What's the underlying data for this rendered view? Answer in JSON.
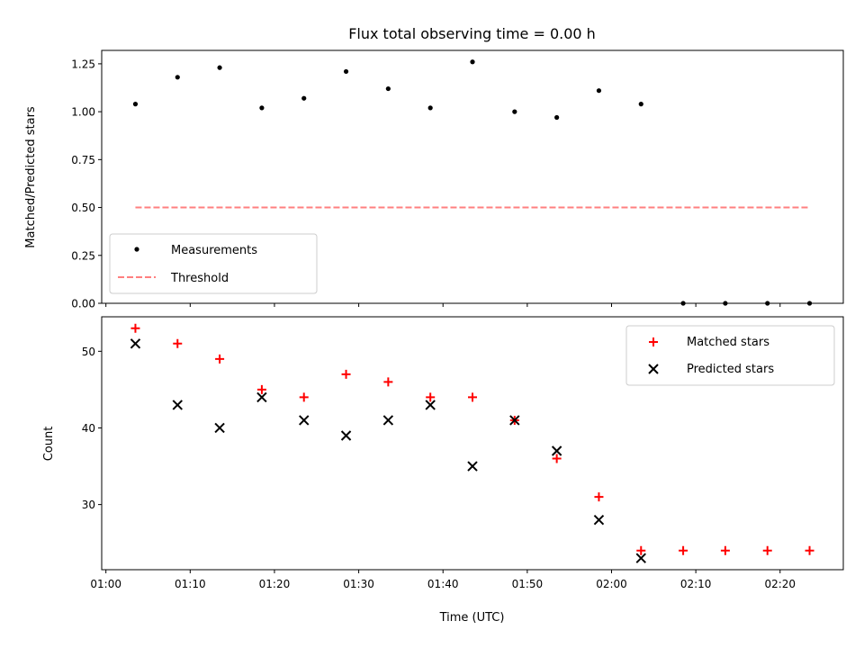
{
  "chart_data": [
    {
      "type": "scatter",
      "title": "Flux total observing time = 0.00 h",
      "xlabel": "",
      "ylabel": "Matched/Predicted stars",
      "ylim": [
        0,
        1.32
      ],
      "yticks": [
        "0.00",
        "0.25",
        "0.50",
        "0.75",
        "1.00",
        "1.25"
      ],
      "xlim": [
        "00:59:30",
        "02:27:30"
      ],
      "legend_position": "lower-left",
      "series": [
        {
          "name": "Measurements",
          "marker": "dot",
          "color": "#000000",
          "x": [
            "01:03:30",
            "01:08:30",
            "01:13:30",
            "01:18:30",
            "01:23:30",
            "01:28:30",
            "01:33:30",
            "01:38:30",
            "01:43:30",
            "01:48:30",
            "01:53:30",
            "01:58:30",
            "02:03:30",
            "02:08:30",
            "02:13:30",
            "02:18:30",
            "02:23:30"
          ],
          "y": [
            1.04,
            1.18,
            1.23,
            1.02,
            1.07,
            1.21,
            1.12,
            1.02,
            1.26,
            1.0,
            0.97,
            1.11,
            1.04,
            0.0,
            0.0,
            0.0,
            0.0
          ]
        },
        {
          "name": "Threshold",
          "style": "dashed",
          "color": "#ff7f7f",
          "x": [
            "01:03:30",
            "02:23:30"
          ],
          "y": [
            0.5,
            0.5
          ]
        }
      ]
    },
    {
      "type": "scatter",
      "title": "",
      "xlabel": "Time (UTC)",
      "ylabel": "Count",
      "ylim": [
        21.5,
        54.5
      ],
      "yticks": [
        "30",
        "40",
        "50"
      ],
      "xlim": [
        "00:59:30",
        "02:27:30"
      ],
      "xticks": [
        "01:00",
        "01:10",
        "01:20",
        "01:30",
        "01:40",
        "01:50",
        "02:00",
        "02:10",
        "02:20"
      ],
      "legend_position": "upper-right",
      "series": [
        {
          "name": "Matched stars",
          "marker": "plus",
          "color": "#ff0000",
          "x": [
            "01:03:30",
            "01:08:30",
            "01:13:30",
            "01:18:30",
            "01:23:30",
            "01:28:30",
            "01:33:30",
            "01:38:30",
            "01:43:30",
            "01:48:30",
            "01:53:30",
            "01:58:30",
            "02:03:30",
            "02:08:30",
            "02:13:30",
            "02:18:30",
            "02:23:30"
          ],
          "y": [
            53,
            51,
            49,
            45,
            44,
            47,
            46,
            44,
            44,
            41,
            36,
            31,
            24,
            24,
            24,
            24,
            24
          ]
        },
        {
          "name": "Predicted stars",
          "marker": "x",
          "color": "#000000",
          "x": [
            "01:03:30",
            "01:08:30",
            "01:13:30",
            "01:18:30",
            "01:23:30",
            "01:28:30",
            "01:33:30",
            "01:38:30",
            "01:43:30",
            "01:48:30",
            "01:53:30",
            "01:58:30",
            "02:03:30"
          ],
          "y": [
            51,
            43,
            40,
            44,
            41,
            39,
            41,
            43,
            35,
            41,
            37,
            28,
            23
          ]
        }
      ]
    }
  ]
}
